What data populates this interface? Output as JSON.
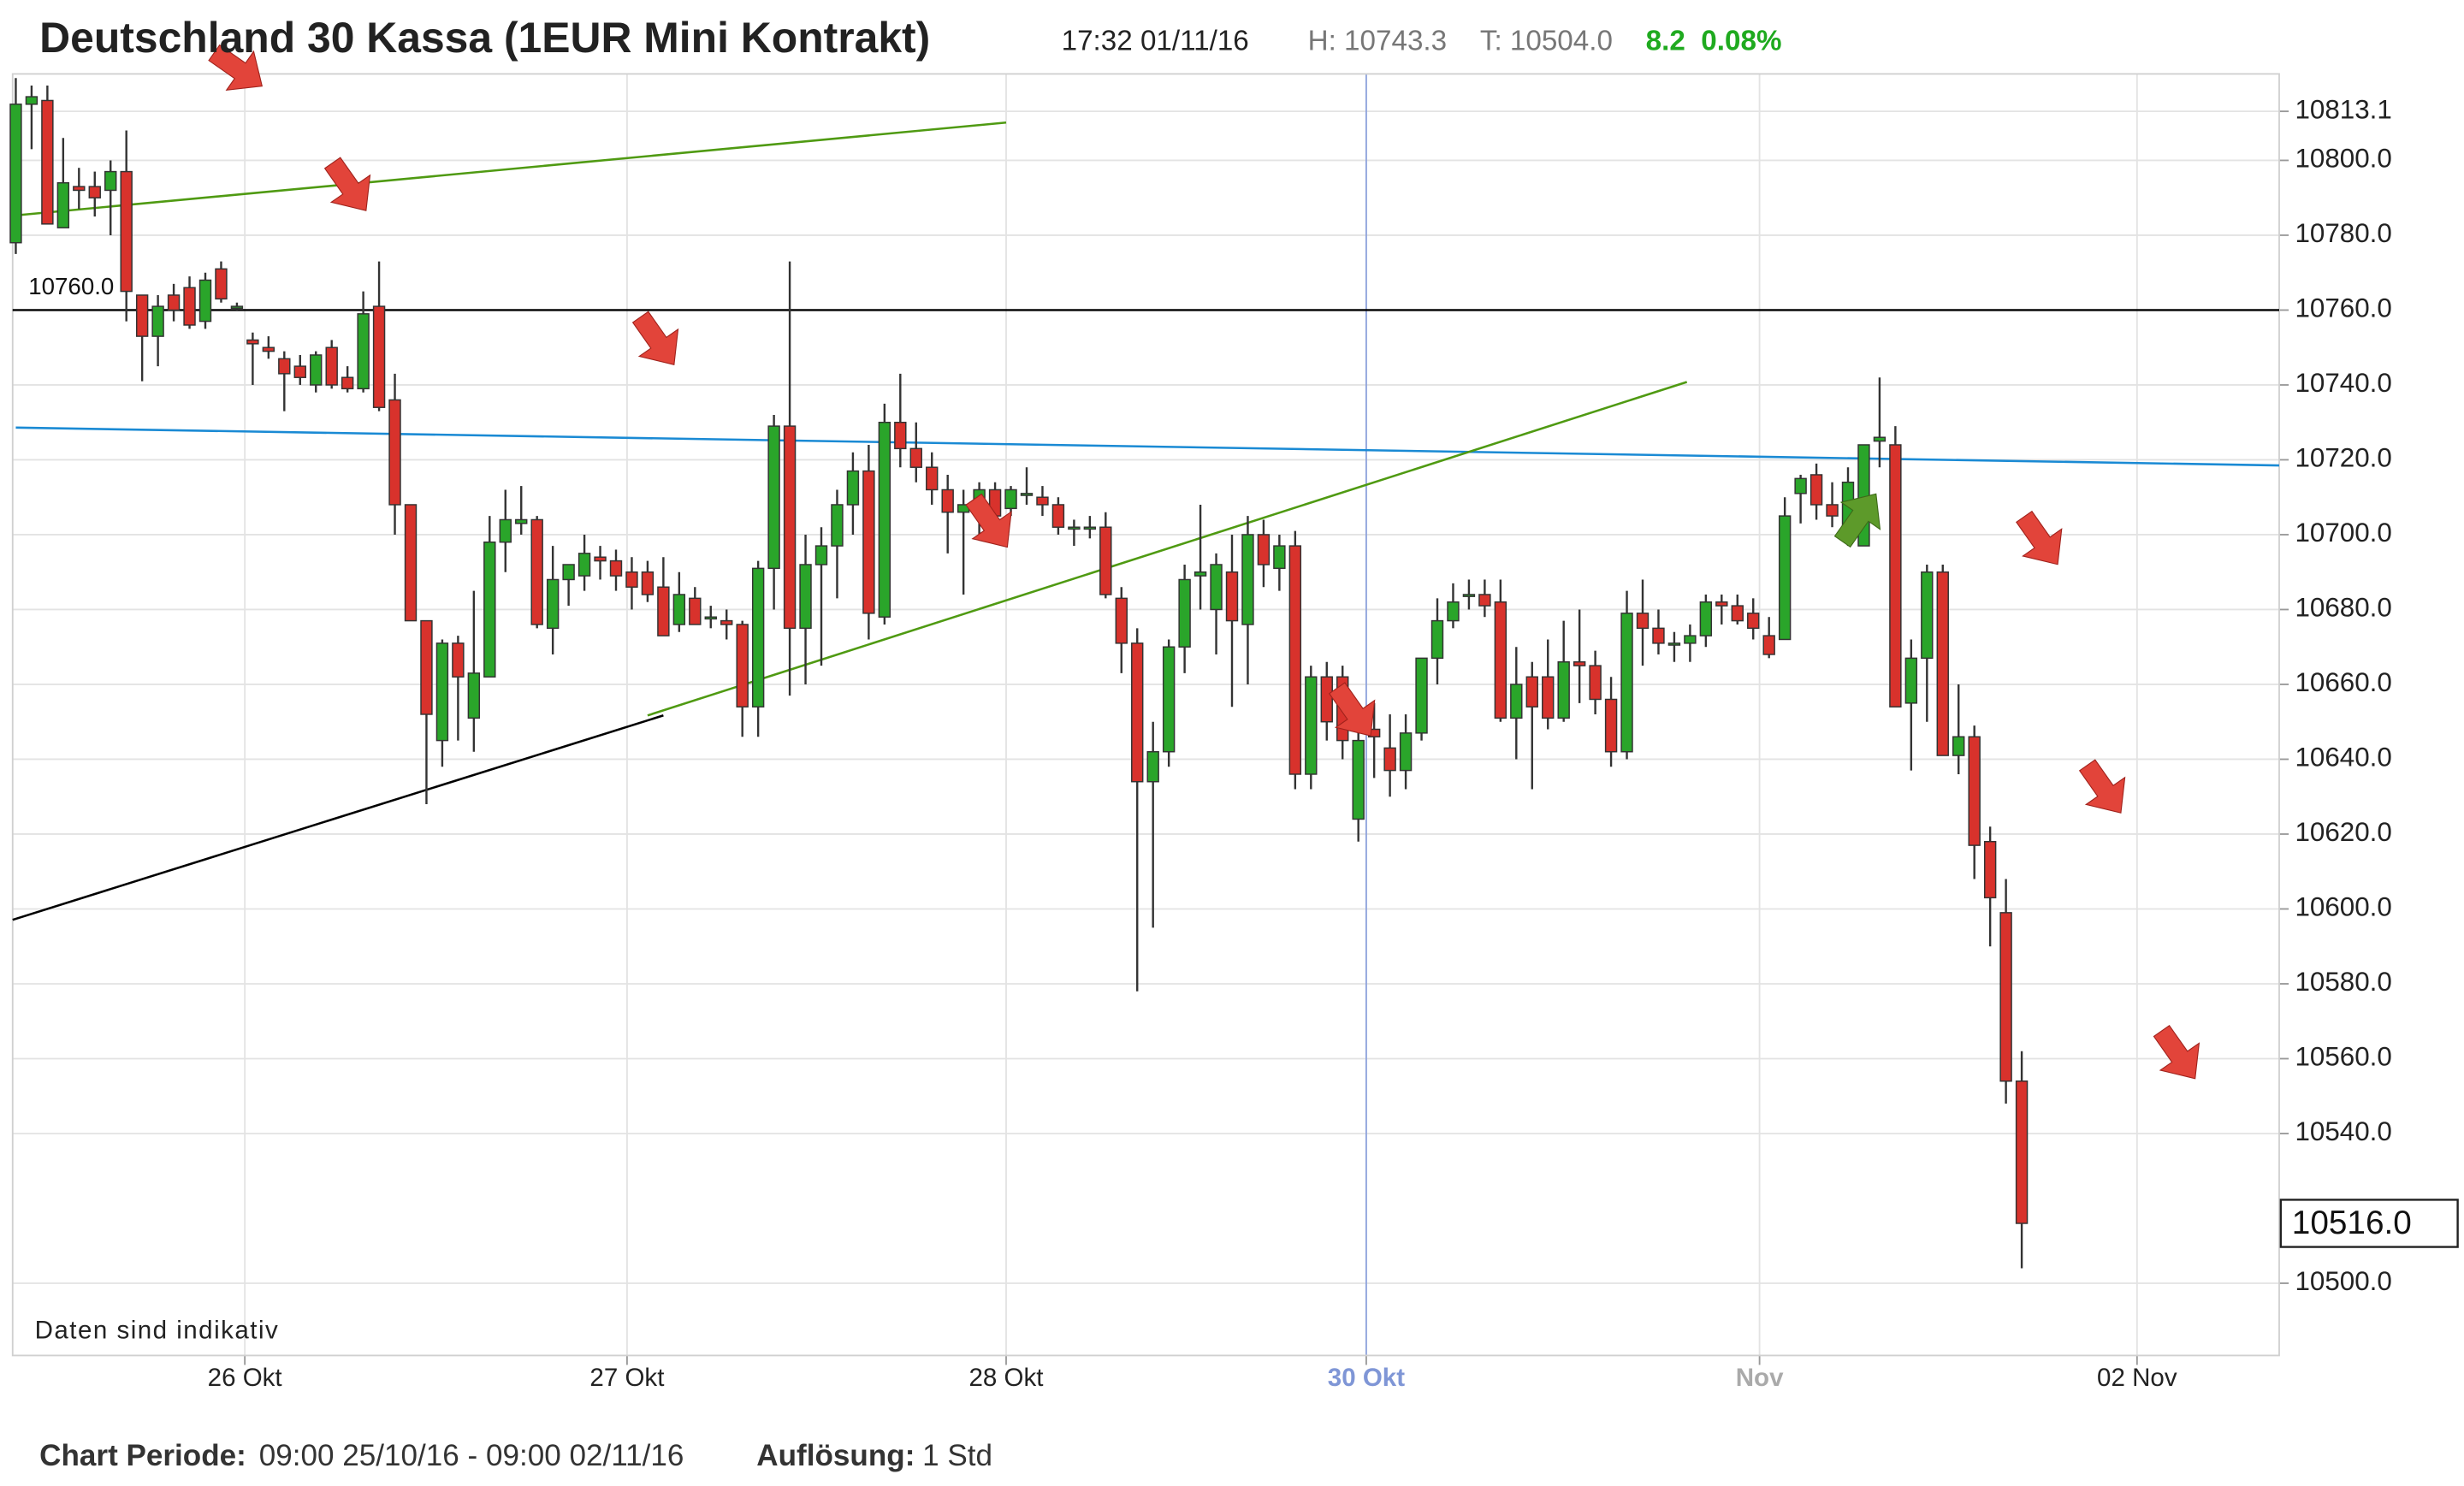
{
  "chart_data": {
    "type": "candlestick",
    "title": "Deutschland 30 Kassa (1EUR Mini Kontrakt)",
    "time": "17:32 01/11/16",
    "high_text": "H: 10743.3",
    "low_text": "T: 10504.0",
    "change": 8.2,
    "change_pct": "0.08%",
    "note": "Daten sind indikativ",
    "period_label": "Chart Periode:",
    "period": "09:00 25/10/16 - 09:00 02/11/16",
    "resolution_label": "Auflösung:",
    "resolution": "1 Std",
    "up_color": "#2aa52a",
    "down_color": "#d8322c",
    "xlim": [
      -0.2,
      143.3
    ],
    "xticks": [
      {
        "value": 14.5,
        "label": "26 Okt"
      },
      {
        "value": 38.7,
        "label": "27 Okt"
      },
      {
        "value": 62.7,
        "label": "28 Okt"
      },
      {
        "value": 85.5,
        "label": "30 Okt"
      },
      {
        "value": 110.4,
        "label": "Nov"
      },
      {
        "value": 134.3,
        "label": "02 Nov"
      }
    ],
    "xtick_colors": [
      "#222",
      "#222",
      "#222",
      "#7f96d6",
      "#aaaaaa",
      "#222"
    ],
    "ylim": [
      10480.7,
      10823.1
    ],
    "yticks": [
      {
        "value": 10500,
        "label": "10500.0"
      },
      {
        "value": 10540,
        "label": "10540.0"
      },
      {
        "value": 10560,
        "label": "10560.0"
      },
      {
        "value": 10580,
        "label": "10580.0"
      },
      {
        "value": 10600,
        "label": "10600.0"
      },
      {
        "value": 10620,
        "label": "10620.0"
      },
      {
        "value": 10640,
        "label": "10640.0"
      },
      {
        "value": 10660,
        "label": "10660.0"
      },
      {
        "value": 10680,
        "label": "10680.0"
      },
      {
        "value": 10700,
        "label": "10700.0"
      },
      {
        "value": 10720,
        "label": "10720.0"
      },
      {
        "value": 10740,
        "label": "10740.0"
      },
      {
        "value": 10760,
        "label": "10760.0"
      },
      {
        "value": 10780,
        "label": "10780.0"
      },
      {
        "value": 10800,
        "label": "10800.0"
      },
      10813.1
    ],
    "grid": true,
    "hline": {
      "value": 10760,
      "label": "10760.0",
      "color": "#000000"
    },
    "last_price": {
      "value": 10516,
      "label": "10516.0"
    },
    "trendlines": [
      {
        "color": "#4f9a12",
        "x": [
          0,
          62.7
        ],
        "y": [
          10785.3,
          10810.1
        ]
      },
      {
        "color": "#1a8ad4",
        "x": [
          0,
          143.3
        ],
        "y": [
          10728.6,
          10718.5
        ]
      },
      {
        "color": "#000000",
        "x": [
          -0.2,
          41
        ],
        "y": [
          10597.1,
          10651.7
        ]
      },
      {
        "color": "#4f9a12",
        "x": [
          40,
          105.8
        ],
        "y": [
          10651.7,
          10740.8
        ]
      }
    ],
    "ohlc": [
      [
        10778,
        10822,
        10775,
        10815
      ],
      [
        10815,
        10820,
        10803,
        10817
      ],
      [
        10816,
        10820,
        10783,
        10783
      ],
      [
        10782,
        10806,
        10782,
        10794
      ],
      [
        10793,
        10798,
        10787,
        10792
      ],
      [
        10793,
        10797,
        10785,
        10790
      ],
      [
        10792,
        10800,
        10780,
        10797
      ],
      [
        10797,
        10808,
        10757,
        10765
      ],
      [
        10764,
        10764,
        10741,
        10753
      ],
      [
        10753,
        10764,
        10745,
        10761
      ],
      [
        10764,
        10767,
        10757,
        10760
      ],
      [
        10766,
        10769,
        10755,
        10756
      ],
      [
        10757,
        10770,
        10755,
        10768
      ],
      [
        10771,
        10773,
        10762,
        10763
      ],
      [
        10761,
        10762,
        10760,
        10761
      ],
      [
        10752,
        10754,
        10740,
        10751
      ],
      [
        10750,
        10753,
        10747,
        10749
      ],
      [
        10747,
        10749,
        10733,
        10743
      ],
      [
        10745,
        10748,
        10740,
        10742
      ],
      [
        10740,
        10749,
        10738,
        10748
      ],
      [
        10750,
        10752,
        10739,
        10740
      ],
      [
        10742,
        10745,
        10738,
        10739
      ],
      [
        10739,
        10765,
        10738,
        10759
      ],
      [
        10761,
        10773,
        10733,
        10734
      ],
      [
        10736,
        10743,
        10700,
        10708
      ],
      [
        10708,
        10708,
        10677,
        10677
      ],
      [
        10677,
        10677,
        10628,
        10652
      ],
      [
        10645,
        10672,
        10638,
        10671
      ],
      [
        10671,
        10673,
        10645,
        10662
      ],
      [
        10651,
        10685,
        10642,
        10663
      ],
      [
        10662,
        10705,
        10662,
        10698
      ],
      [
        10698,
        10712,
        10690,
        10704
      ],
      [
        10703,
        10713,
        10700,
        10704
      ],
      [
        10704,
        10705,
        10675,
        10676
      ],
      [
        10675,
        10697,
        10668,
        10688
      ],
      [
        10688,
        10692,
        10681,
        10692
      ],
      [
        10689,
        10700,
        10685,
        10695
      ],
      [
        10694,
        10697,
        10688,
        10693
      ],
      [
        10693,
        10696,
        10685,
        10689
      ],
      [
        10690,
        10694,
        10680,
        10686
      ],
      [
        10690,
        10693,
        10682,
        10684
      ],
      [
        10686,
        10694,
        10673,
        10673
      ],
      [
        10676,
        10690,
        10674,
        10684
      ],
      [
        10683,
        10686,
        10676,
        10676
      ],
      [
        10678,
        10681,
        10675,
        10678
      ],
      [
        10677,
        10680,
        10672,
        10676
      ],
      [
        10676,
        10677,
        10646,
        10654
      ],
      [
        10654,
        10693,
        10646,
        10691
      ],
      [
        10691,
        10732,
        10680,
        10729
      ],
      [
        10729,
        10773,
        10657,
        10675
      ],
      [
        10675,
        10700,
        10660,
        10692
      ],
      [
        10692,
        10702,
        10665,
        10697
      ],
      [
        10697,
        10712,
        10683,
        10708
      ],
      [
        10708,
        10722,
        10700,
        10717
      ],
      [
        10717,
        10724,
        10672,
        10679
      ],
      [
        10678,
        10735,
        10676,
        10730
      ],
      [
        10730,
        10743,
        10718,
        10723
      ],
      [
        10723,
        10730,
        10714,
        10718
      ],
      [
        10718,
        10722,
        10708,
        10712
      ],
      [
        10712,
        10716,
        10695,
        10706
      ],
      [
        10706,
        10712,
        10684,
        10708
      ],
      [
        10708,
        10714,
        10700,
        10712
      ],
      [
        10712,
        10714,
        10700,
        10705
      ],
      [
        10707,
        10713,
        10705,
        10712
      ],
      [
        10711,
        10718,
        10708,
        10711
      ],
      [
        10710,
        10713,
        10705,
        10708
      ],
      [
        10708,
        10710,
        10700,
        10702
      ],
      [
        10702,
        10704,
        10697,
        10702
      ],
      [
        10702,
        10705,
        10699,
        10702
      ],
      [
        10702,
        10706,
        10683,
        10684
      ],
      [
        10683,
        10686,
        10663,
        10671
      ],
      [
        10671,
        10675,
        10578,
        10634
      ],
      [
        10634,
        10650,
        10595,
        10642
      ],
      [
        10642,
        10672,
        10638,
        10670
      ],
      [
        10670,
        10692,
        10663,
        10688
      ],
      [
        10689,
        10708,
        10680,
        10690
      ],
      [
        10680,
        10695,
        10668,
        10692
      ],
      [
        10690,
        10700,
        10654,
        10677
      ],
      [
        10676,
        10705,
        10660,
        10700
      ],
      [
        10700,
        10704,
        10686,
        10692
      ],
      [
        10691,
        10700,
        10685,
        10697
      ],
      [
        10697,
        10701,
        10632,
        10636
      ],
      [
        10636,
        10665,
        10632,
        10662
      ],
      [
        10662,
        10666,
        10645,
        10650
      ],
      [
        10662,
        10665,
        10640,
        10645
      ],
      [
        10624,
        10650,
        10618,
        10645
      ],
      [
        10648,
        10655,
        10635,
        10646
      ],
      [
        10643,
        10652,
        10630,
        10637
      ],
      [
        10637,
        10652,
        10632,
        10647
      ],
      [
        10647,
        10667,
        10645,
        10667
      ],
      [
        10667,
        10683,
        10660,
        10677
      ],
      [
        10677,
        10687,
        10675,
        10682
      ],
      [
        10684,
        10688,
        10680,
        10684
      ],
      [
        10684,
        10688,
        10678,
        10681
      ],
      [
        10682,
        10688,
        10650,
        10651
      ],
      [
        10651,
        10670,
        10640,
        10660
      ],
      [
        10662,
        10666,
        10632,
        10654
      ],
      [
        10662,
        10672,
        10648,
        10651
      ],
      [
        10651,
        10677,
        10650,
        10666
      ],
      [
        10666,
        10680,
        10655,
        10665
      ],
      [
        10665,
        10669,
        10652,
        10656
      ],
      [
        10656,
        10662,
        10638,
        10642
      ],
      [
        10642,
        10685,
        10640,
        10679
      ],
      [
        10679,
        10688,
        10665,
        10675
      ],
      [
        10675,
        10680,
        10668,
        10671
      ],
      [
        10671,
        10674,
        10666,
        10671
      ],
      [
        10671,
        10676,
        10666,
        10673
      ],
      [
        10673,
        10684,
        10670,
        10682
      ],
      [
        10682,
        10684,
        10676,
        10681
      ],
      [
        10681,
        10684,
        10676,
        10677
      ],
      [
        10679,
        10683,
        10672,
        10675
      ],
      [
        10673,
        10678,
        10667,
        10668
      ],
      [
        10672,
        10710,
        10672,
        10705
      ],
      [
        10711,
        10716,
        10703,
        10715
      ],
      [
        10716,
        10719,
        10704,
        10708
      ],
      [
        10708,
        10714,
        10702,
        10705
      ],
      [
        10702,
        10718,
        10697,
        10714
      ],
      [
        10697,
        10724,
        10697,
        10724
      ],
      [
        10725,
        10742,
        10718,
        10726
      ],
      [
        10724,
        10729,
        10654,
        10654
      ],
      [
        10655,
        10672,
        10637,
        10667
      ],
      [
        10667,
        10692,
        10650,
        10690
      ],
      [
        10690,
        10692,
        10641,
        10641
      ],
      [
        10641,
        10660,
        10636,
        10646
      ],
      [
        10646,
        10649,
        10608,
        10617
      ],
      [
        10618,
        10622,
        10590,
        10603
      ],
      [
        10599,
        10608,
        10548,
        10554
      ],
      [
        10554,
        10562,
        10504,
        10516
      ]
    ]
  }
}
